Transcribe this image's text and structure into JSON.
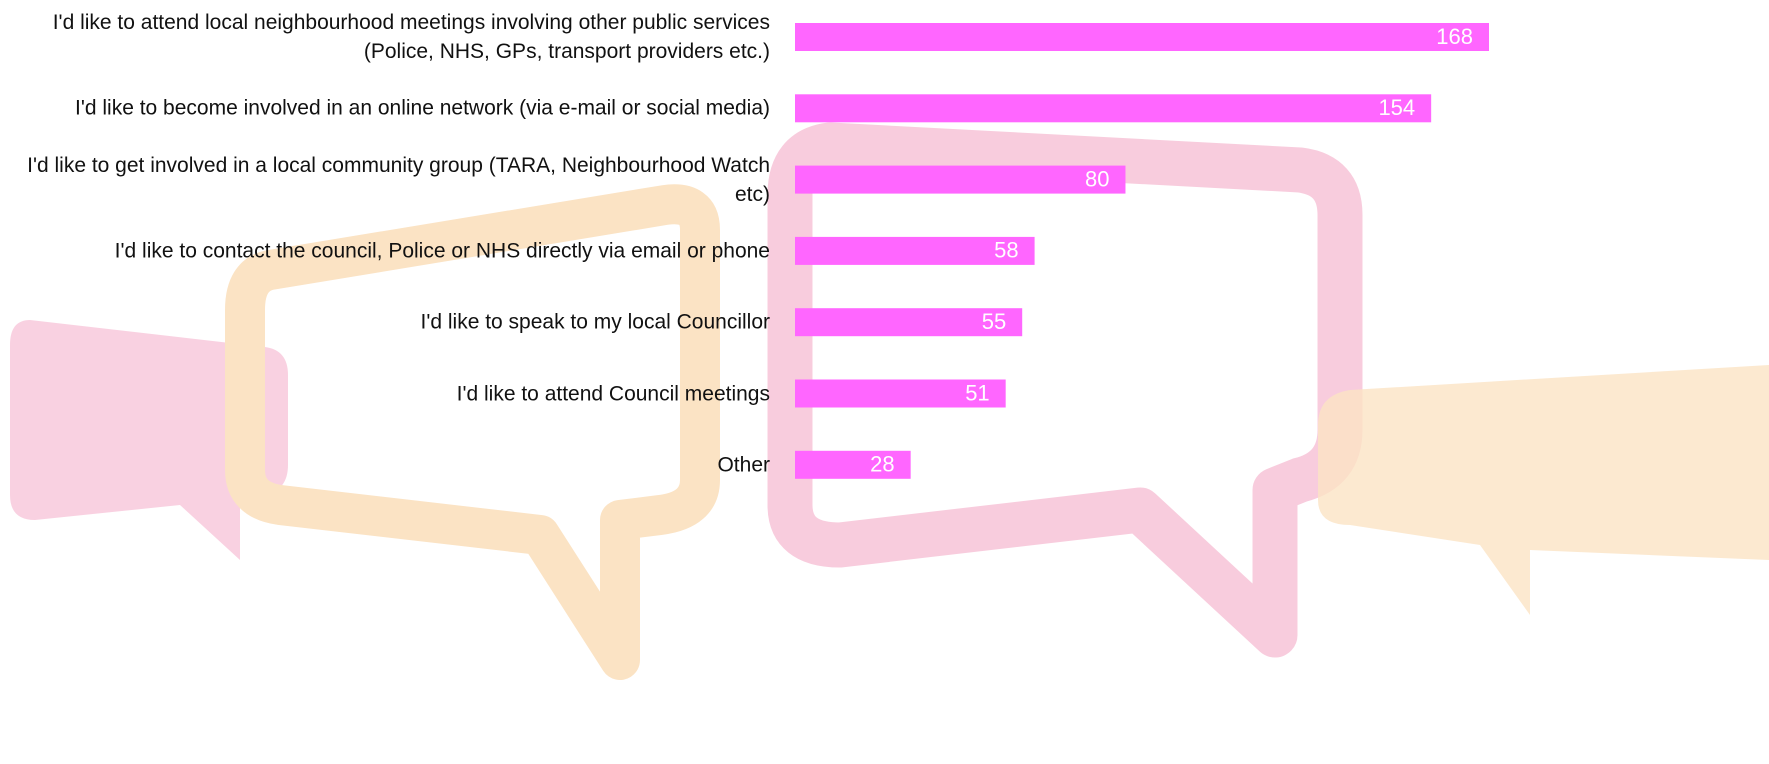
{
  "chart_data": {
    "type": "bar",
    "orientation": "horizontal",
    "categories": [
      "I'd like to attend local neighbourhood meetings involving other public services (Police, NHS, GPs, transport providers etc.)",
      "I'd like to become involved in an online network (via e-mail or social media)",
      "I'd like to get involved in a local community group (TARA, Neighbourhood Watch etc)",
      "I'd like to contact the council, Police or NHS directly via email or phone",
      "I'd like to speak to my local Councillor",
      "I'd like to attend Council meetings",
      "Other"
    ],
    "values": [
      168,
      154,
      80,
      58,
      55,
      51,
      28
    ],
    "color": "#ff66ff"
  }
}
